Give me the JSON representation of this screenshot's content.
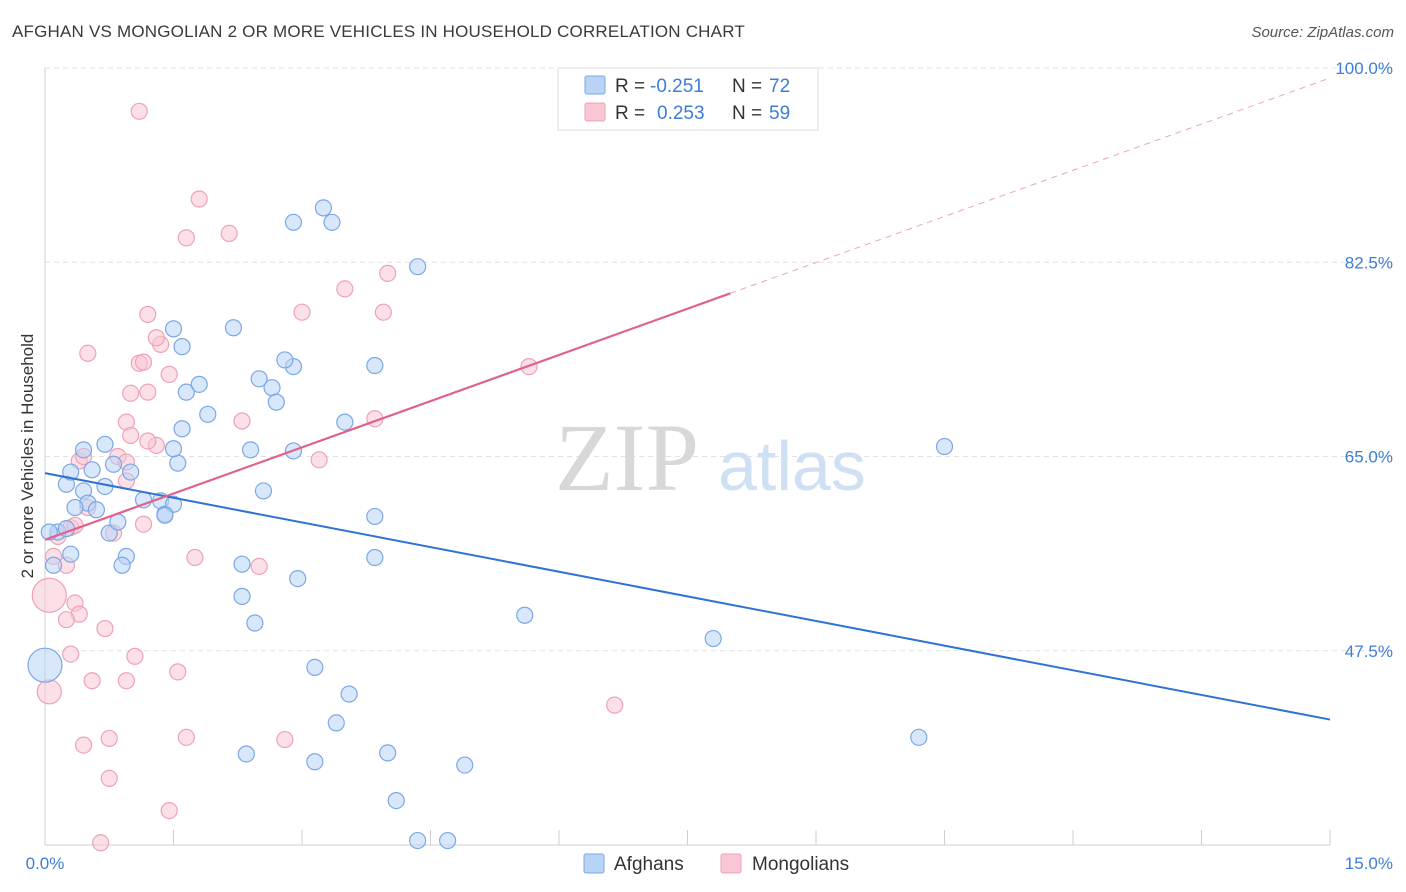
{
  "header": {
    "title": "AFGHAN VS MONGOLIAN 2 OR MORE VEHICLES IN HOUSEHOLD CORRELATION CHART",
    "source": "Source: ZipAtlas.com"
  },
  "watermark": {
    "zip": "ZIP",
    "atlas": "atlas"
  },
  "chart_data": {
    "type": "scatter",
    "title": "AFGHAN VS MONGOLIAN 2 OR MORE VEHICLES IN HOUSEHOLD CORRELATION CHART",
    "xlabel": "",
    "ylabel": "2 or more Vehicles in Household",
    "xlim": [
      0,
      15
    ],
    "ylim": [
      30,
      100
    ],
    "x_tick_labels": [
      "0.0%",
      "15.0%"
    ],
    "y_ticks": [
      47.5,
      65.0,
      82.5,
      100.0
    ],
    "y_tick_labels": [
      "47.5%",
      "65.0%",
      "82.5%",
      "100.0%"
    ],
    "grid": "horizontal dashed",
    "legend_stats": [
      {
        "r_label": "R =",
        "r_value": "-0.251",
        "n_label": "N =",
        "n_value": "72"
      },
      {
        "r_label": "R =",
        "r_value": "0.253",
        "n_label": "N =",
        "n_value": "59"
      }
    ],
    "legend": [
      "Afghans",
      "Mongolians"
    ],
    "colors": {
      "afghans_fill": "#b9d3f5",
      "afghans_stroke": "#7aa8e6",
      "afghans_line": "#2f72d4",
      "mongolians_fill": "#f9c6d4",
      "mongolians_stroke": "#eda2b8",
      "mongolians_line": "#e0628c"
    },
    "series": [
      {
        "name": "Afghans",
        "trend": {
          "x": [
            0,
            15
          ],
          "y": [
            63.5,
            41.3
          ]
        },
        "points": [
          [
            0.15,
            58.2,
            1
          ],
          [
            0.25,
            58.5,
            1
          ],
          [
            0.3,
            56.2,
            1
          ],
          [
            0.1,
            55.2,
            1
          ],
          [
            0.45,
            61.9,
            1
          ],
          [
            0.5,
            60.8,
            1
          ],
          [
            0.55,
            63.8,
            1
          ],
          [
            0.35,
            60.4,
            1
          ],
          [
            0.25,
            62.5,
            1
          ],
          [
            0.6,
            60.2,
            1
          ],
          [
            0.7,
            62.3,
            1
          ],
          [
            0.75,
            58.1,
            1
          ],
          [
            0.85,
            59.1,
            1
          ],
          [
            0.7,
            66.1,
            1
          ],
          [
            0.8,
            64.3,
            1
          ],
          [
            1.0,
            63.6,
            1
          ],
          [
            0.95,
            56.0,
            1
          ],
          [
            0.9,
            55.2,
            1
          ],
          [
            1.15,
            61.1,
            1
          ],
          [
            1.35,
            61.0,
            1
          ],
          [
            1.4,
            59.8,
            1
          ],
          [
            1.5,
            60.7,
            1
          ],
          [
            1.55,
            64.4,
            1
          ],
          [
            1.5,
            65.7,
            1
          ],
          [
            1.6,
            67.5,
            1
          ],
          [
            1.65,
            70.8,
            1
          ],
          [
            1.9,
            68.8,
            1
          ],
          [
            1.8,
            71.5,
            1
          ],
          [
            1.6,
            74.9,
            1
          ],
          [
            1.5,
            76.5,
            1
          ],
          [
            2.2,
            76.6,
            1
          ],
          [
            2.5,
            72.0,
            1
          ],
          [
            2.65,
            71.2,
            1
          ],
          [
            2.7,
            69.9,
            1
          ],
          [
            2.9,
            73.1,
            1
          ],
          [
            2.8,
            73.7,
            1
          ],
          [
            2.4,
            65.6,
            1
          ],
          [
            2.55,
            61.9,
            1
          ],
          [
            2.9,
            65.5,
            1
          ],
          [
            3.5,
            68.1,
            1
          ],
          [
            3.85,
            59.6,
            1
          ],
          [
            3.85,
            55.9,
            1
          ],
          [
            3.85,
            73.2,
            1
          ],
          [
            2.3,
            55.3,
            1
          ],
          [
            2.3,
            52.4,
            1
          ],
          [
            2.45,
            50.0,
            1
          ],
          [
            2.95,
            54.0,
            1
          ],
          [
            3.15,
            46.0,
            1
          ],
          [
            3.55,
            43.6,
            1
          ],
          [
            3.4,
            41.0,
            1
          ],
          [
            2.35,
            38.2,
            1
          ],
          [
            3.15,
            37.5,
            1
          ],
          [
            4.0,
            38.3,
            1
          ],
          [
            4.9,
            37.2,
            1
          ],
          [
            5.6,
            50.7,
            1
          ],
          [
            4.1,
            34.0,
            1
          ],
          [
            4.35,
            30.4,
            1
          ],
          [
            4.7,
            30.4,
            1
          ],
          [
            0.45,
            65.6,
            1
          ],
          [
            1.4,
            59.7,
            1
          ],
          [
            0.3,
            63.6,
            1
          ],
          [
            2.9,
            86.1,
            1
          ],
          [
            3.25,
            87.4,
            1
          ],
          [
            3.35,
            86.1,
            1
          ],
          [
            4.35,
            82.1,
            1
          ],
          [
            7.8,
            48.6,
            1
          ],
          [
            10.2,
            39.7,
            1
          ],
          [
            10.5,
            65.9,
            1
          ],
          [
            0.05,
            58.2,
            1
          ],
          [
            0.0,
            46.2,
            3
          ]
        ]
      },
      {
        "name": "Mongolians",
        "trend_solid": {
          "x": [
            0,
            8
          ],
          "y": [
            57.5,
            79.7
          ]
        },
        "trend_dashed": {
          "x": [
            8,
            15
          ],
          "y": [
            79.7,
            99.1
          ]
        },
        "points": [
          [
            1.1,
            96.1,
            1
          ],
          [
            1.8,
            88.2,
            1
          ],
          [
            1.65,
            84.7,
            1
          ],
          [
            2.15,
            85.1,
            1
          ],
          [
            3.5,
            80.1,
            1
          ],
          [
            4.0,
            81.5,
            1
          ],
          [
            3.0,
            78.0,
            1
          ],
          [
            3.95,
            78.0,
            1
          ],
          [
            1.2,
            77.8,
            1
          ],
          [
            0.5,
            74.3,
            1
          ],
          [
            1.35,
            75.1,
            1
          ],
          [
            1.3,
            75.7,
            1
          ],
          [
            1.1,
            73.4,
            1
          ],
          [
            1.15,
            73.5,
            1
          ],
          [
            1.45,
            72.4,
            1
          ],
          [
            1.0,
            70.7,
            1
          ],
          [
            1.2,
            70.8,
            1
          ],
          [
            0.95,
            68.1,
            1
          ],
          [
            1.0,
            66.9,
            1
          ],
          [
            0.85,
            65.0,
            1
          ],
          [
            0.95,
            64.5,
            1
          ],
          [
            1.3,
            66.0,
            1
          ],
          [
            1.2,
            66.4,
            1
          ],
          [
            0.4,
            64.6,
            1
          ],
          [
            0.45,
            65.0,
            1
          ],
          [
            0.95,
            62.8,
            1
          ],
          [
            0.5,
            60.4,
            1
          ],
          [
            0.3,
            58.6,
            1
          ],
          [
            0.15,
            57.8,
            1
          ],
          [
            0.1,
            56.0,
            1
          ],
          [
            0.25,
            55.2,
            1
          ],
          [
            0.35,
            58.8,
            1
          ],
          [
            1.15,
            58.9,
            1
          ],
          [
            0.8,
            58.1,
            1
          ],
          [
            2.3,
            68.2,
            1
          ],
          [
            3.2,
            64.7,
            1
          ],
          [
            3.85,
            68.4,
            1
          ],
          [
            5.65,
            73.1,
            1
          ],
          [
            1.75,
            55.9,
            1
          ],
          [
            2.5,
            55.1,
            1
          ],
          [
            0.35,
            51.8,
            1
          ],
          [
            0.4,
            50.8,
            1
          ],
          [
            0.25,
            50.3,
            1
          ],
          [
            0.7,
            49.5,
            1
          ],
          [
            0.3,
            47.2,
            1
          ],
          [
            1.05,
            47.0,
            1
          ],
          [
            0.55,
            44.8,
            1
          ],
          [
            0.95,
            44.8,
            1
          ],
          [
            1.55,
            45.6,
            1
          ],
          [
            0.45,
            39.0,
            1
          ],
          [
            0.75,
            39.6,
            1
          ],
          [
            1.65,
            39.7,
            1
          ],
          [
            2.8,
            39.5,
            1
          ],
          [
            0.75,
            36.0,
            1
          ],
          [
            1.45,
            33.1,
            1
          ],
          [
            0.65,
            30.2,
            1
          ],
          [
            6.65,
            42.6,
            1
          ],
          [
            0.05,
            52.5,
            3
          ],
          [
            0.05,
            43.8,
            2
          ]
        ]
      }
    ]
  }
}
